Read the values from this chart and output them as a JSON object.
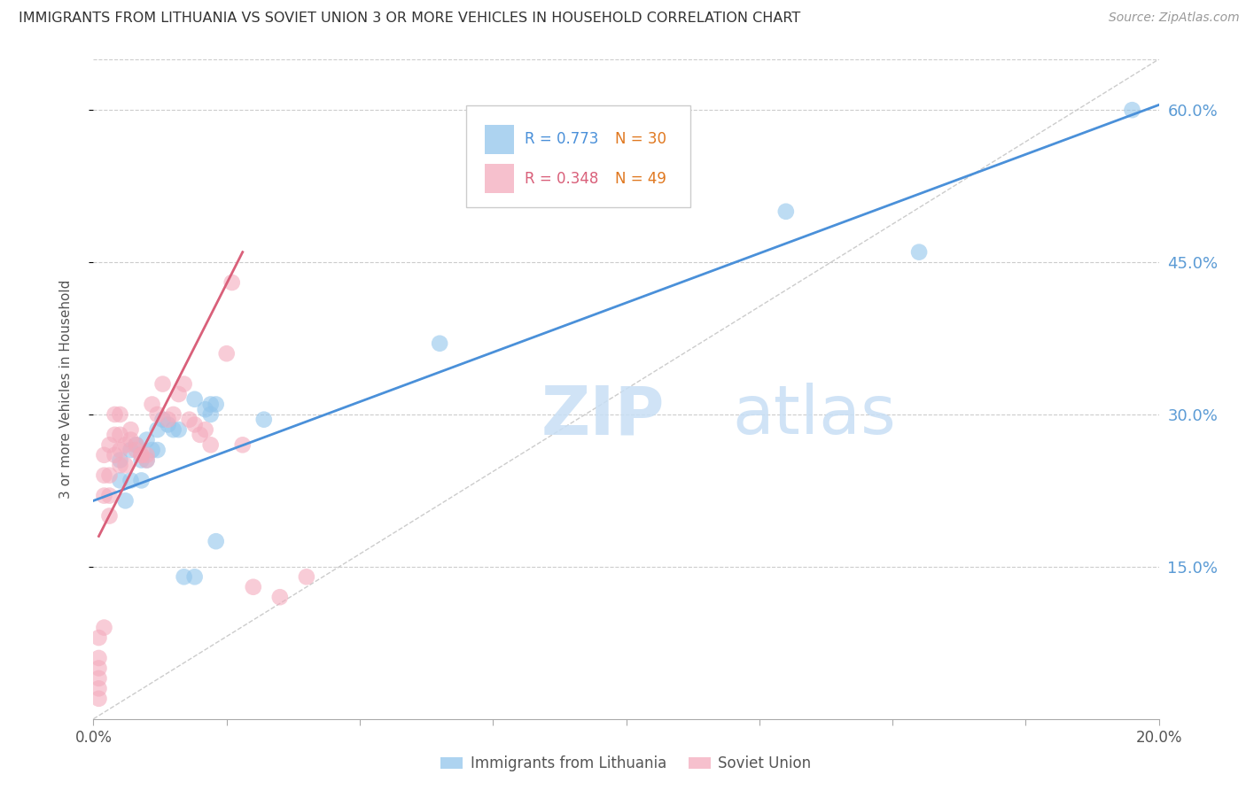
{
  "title": "IMMIGRANTS FROM LITHUANIA VS SOVIET UNION 3 OR MORE VEHICLES IN HOUSEHOLD CORRELATION CHART",
  "source": "Source: ZipAtlas.com",
  "watermark_zip": "ZIP",
  "watermark_atlas": "atlas",
  "ylabel": "3 or more Vehicles in Household",
  "xlim": [
    0.0,
    0.2
  ],
  "ylim": [
    0.0,
    0.65
  ],
  "yticks": [
    0.15,
    0.3,
    0.45,
    0.6
  ],
  "ytick_labels": [
    "15.0%",
    "30.0%",
    "45.0%",
    "60.0%"
  ],
  "xticks": [
    0.0,
    0.025,
    0.05,
    0.075,
    0.1,
    0.125,
    0.15,
    0.175,
    0.2
  ],
  "xtick_labels_show": {
    "0.0": "0.0%",
    "0.20": "20.0%"
  },
  "legend_labels": [
    "Immigrants from Lithuania",
    "Soviet Union"
  ],
  "lithuania_R": 0.773,
  "lithuania_N": 30,
  "soviet_R": 0.348,
  "soviet_N": 49,
  "lithuania_color": "#92C5EC",
  "soviet_color": "#F4ABBD",
  "lithuania_line_color": "#4A90D9",
  "soviet_line_color": "#D9607A",
  "dashed_line_color": "#CCCCCC",
  "grid_color": "#CCCCCC",
  "title_color": "#333333",
  "right_axis_color": "#5B9BD5",
  "r_text_color_lith": "#4A90D9",
  "r_text_color_soviet": "#D9607A",
  "n_text_color": "#E07820",
  "legend_R_label_lith": "R = 0.773",
  "legend_N_label_lith": "N = 30",
  "legend_R_label_soviet": "R = 0.348",
  "legend_N_label_soviet": "N = 49",
  "lithuania_points_x": [
    0.005,
    0.005,
    0.006,
    0.007,
    0.007,
    0.008,
    0.009,
    0.009,
    0.01,
    0.01,
    0.011,
    0.012,
    0.012,
    0.013,
    0.014,
    0.015,
    0.016,
    0.017,
    0.019,
    0.019,
    0.021,
    0.022,
    0.022,
    0.023,
    0.023,
    0.032,
    0.065,
    0.13,
    0.155,
    0.195
  ],
  "lithuania_points_y": [
    0.255,
    0.235,
    0.215,
    0.265,
    0.235,
    0.27,
    0.235,
    0.255,
    0.275,
    0.255,
    0.265,
    0.285,
    0.265,
    0.295,
    0.29,
    0.285,
    0.285,
    0.14,
    0.14,
    0.315,
    0.305,
    0.31,
    0.3,
    0.175,
    0.31,
    0.295,
    0.37,
    0.5,
    0.46,
    0.6
  ],
  "soviet_points_x": [
    0.001,
    0.001,
    0.001,
    0.001,
    0.001,
    0.001,
    0.002,
    0.002,
    0.002,
    0.002,
    0.003,
    0.003,
    0.003,
    0.003,
    0.004,
    0.004,
    0.004,
    0.005,
    0.005,
    0.005,
    0.005,
    0.006,
    0.006,
    0.007,
    0.007,
    0.008,
    0.008,
    0.009,
    0.009,
    0.01,
    0.01,
    0.011,
    0.012,
    0.013,
    0.014,
    0.015,
    0.016,
    0.017,
    0.018,
    0.019,
    0.02,
    0.021,
    0.022,
    0.025,
    0.026,
    0.028,
    0.03,
    0.035,
    0.04
  ],
  "soviet_points_y": [
    0.05,
    0.03,
    0.04,
    0.08,
    0.06,
    0.02,
    0.22,
    0.24,
    0.26,
    0.09,
    0.24,
    0.22,
    0.2,
    0.27,
    0.28,
    0.26,
    0.3,
    0.28,
    0.3,
    0.265,
    0.25,
    0.25,
    0.27,
    0.285,
    0.275,
    0.27,
    0.265,
    0.26,
    0.26,
    0.26,
    0.255,
    0.31,
    0.3,
    0.33,
    0.295,
    0.3,
    0.32,
    0.33,
    0.295,
    0.29,
    0.28,
    0.285,
    0.27,
    0.36,
    0.43,
    0.27,
    0.13,
    0.12,
    0.14
  ],
  "lith_line_x0": 0.0,
  "lith_line_y0": 0.215,
  "lith_line_x1": 0.2,
  "lith_line_y1": 0.605,
  "sov_line_x0": 0.001,
  "sov_line_y0": 0.18,
  "sov_line_x1": 0.028,
  "sov_line_y1": 0.46
}
